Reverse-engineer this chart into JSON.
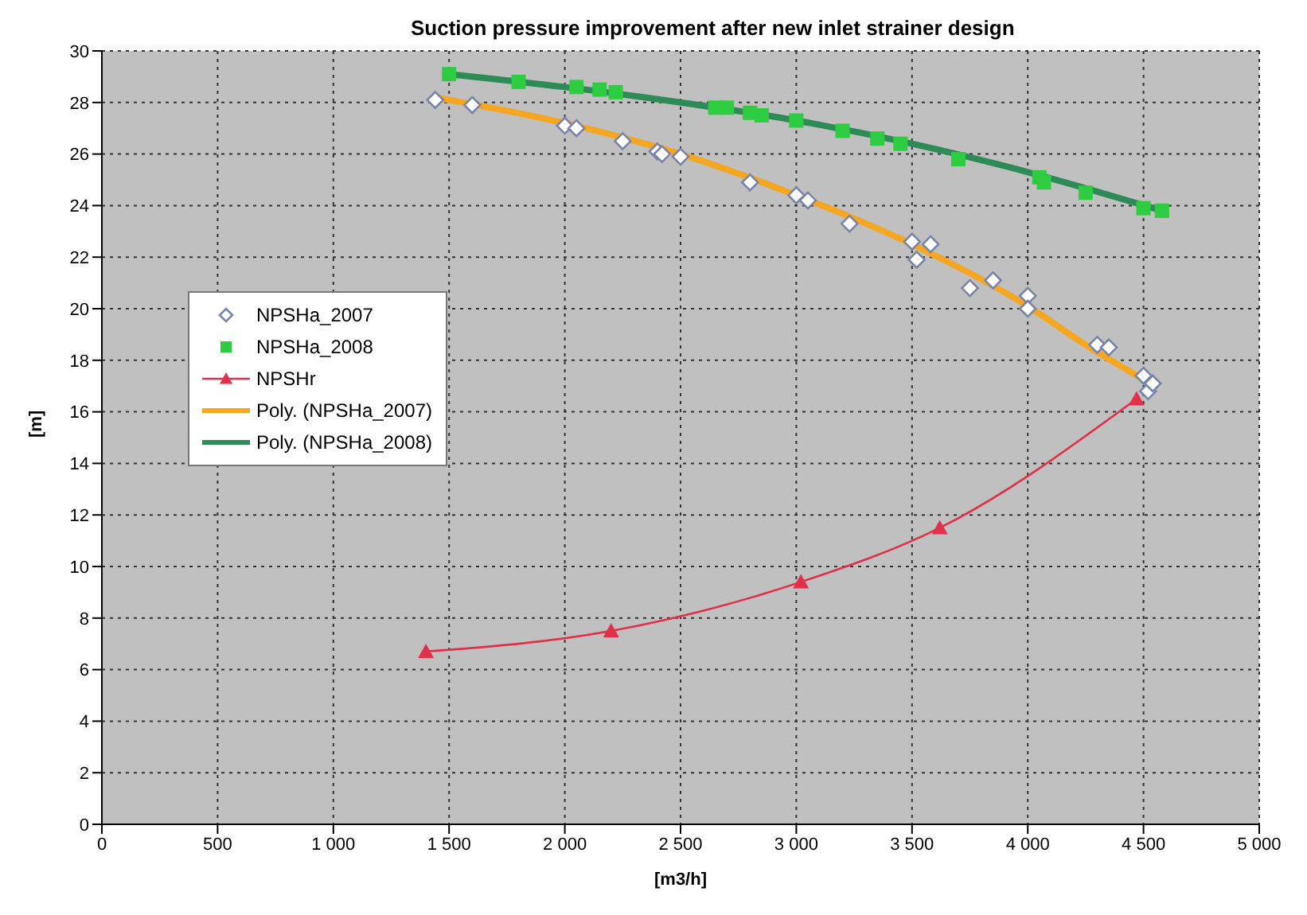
{
  "chart_data": {
    "type": "scatter",
    "title": "Suction pressure improvement after new inlet strainer design",
    "xlabel": "[m3/h]",
    "ylabel": "[m]",
    "xlim": [
      0,
      5000
    ],
    "xticks": [
      0,
      500,
      {
        "value": 1000,
        "label": "1 000"
      },
      {
        "value": 1500,
        "label": "1 500"
      },
      {
        "value": 2000,
        "label": "2 000"
      },
      {
        "value": 2500,
        "label": "2 500"
      },
      {
        "value": 3000,
        "label": "3 000"
      },
      {
        "value": 3500,
        "label": "3 500"
      },
      {
        "value": 4000,
        "label": "4 000"
      },
      {
        "value": 4500,
        "label": "4 500"
      },
      {
        "value": 5000,
        "label": "5 000"
      }
    ],
    "ylim": [
      0,
      30
    ],
    "yticks": [
      0,
      2,
      4,
      6,
      8,
      10,
      12,
      14,
      16,
      18,
      20,
      22,
      24,
      26,
      28,
      30
    ],
    "grid": true,
    "legend": "left",
    "series": [
      {
        "name": "NPSHa_2007",
        "marker": "diamond",
        "color": "#7a84a8",
        "x": [
          1440,
          1600,
          2000,
          2050,
          2250,
          2400,
          2420,
          2500,
          2800,
          3000,
          3050,
          3230,
          3500,
          3520,
          3580,
          3750,
          3850,
          4000,
          4000,
          4300,
          4350,
          4500,
          4520,
          4540
        ],
        "values": [
          28.1,
          27.9,
          27.1,
          27.0,
          26.5,
          26.1,
          26.0,
          25.9,
          24.9,
          24.4,
          24.2,
          23.3,
          22.6,
          21.9,
          22.5,
          20.8,
          21.1,
          20.5,
          20.0,
          18.6,
          18.5,
          17.4,
          16.8,
          17.1
        ]
      },
      {
        "name": "NPSHa_2008",
        "marker": "square",
        "color": "#2ecc40",
        "x": [
          1500,
          1800,
          2050,
          2150,
          2220,
          2650,
          2700,
          2800,
          2850,
          3000,
          3200,
          3350,
          3450,
          3700,
          4050,
          4070,
          4250,
          4500,
          4580
        ],
        "values": [
          29.1,
          28.8,
          28.6,
          28.5,
          28.4,
          27.8,
          27.8,
          27.6,
          27.5,
          27.3,
          26.9,
          26.6,
          26.4,
          25.8,
          25.1,
          24.9,
          24.5,
          23.9,
          23.8
        ]
      },
      {
        "name": "NPSHr",
        "type": "line",
        "marker": "triangle",
        "color": "#e0304a",
        "x": [
          1400,
          2200,
          3020,
          3620,
          4470
        ],
        "values": [
          6.7,
          7.5,
          9.4,
          11.5,
          16.5
        ]
      },
      {
        "name": "Poly. (NPSHa_2007)",
        "type": "line",
        "marker": "none",
        "color": "#f5a623",
        "x": [
          1440,
          2000,
          2500,
          3000,
          3500,
          4000,
          4250,
          4550
        ],
        "values": [
          28.2,
          27.2,
          26.0,
          24.4,
          22.5,
          20.1,
          18.6,
          17.0
        ]
      },
      {
        "name": "Poly. (NPSHa_2008)",
        "type": "line",
        "marker": "none",
        "color": "#2e8b57",
        "x": [
          1500,
          2000,
          2500,
          3000,
          3500,
          4000,
          4580
        ],
        "values": [
          29.1,
          28.6,
          28.0,
          27.3,
          26.4,
          25.3,
          23.8
        ]
      }
    ]
  }
}
